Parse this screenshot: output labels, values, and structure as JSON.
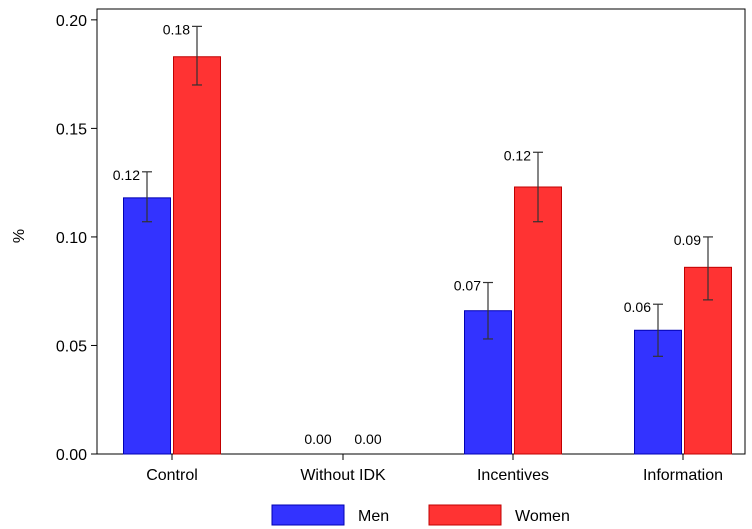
{
  "chart_data": {
    "type": "bar",
    "title": "",
    "xlabel": "",
    "ylabel": "%",
    "ylim": [
      0,
      0.205
    ],
    "yticks": [
      "0.00",
      "0.05",
      "0.10",
      "0.15",
      "0.20"
    ],
    "categories": [
      "Control",
      "Without IDK",
      "Incentives",
      "Information"
    ],
    "series": [
      {
        "name": "Men",
        "color": "#3333ff",
        "values": [
          0.118,
          0.0,
          0.066,
          0.057
        ],
        "labels": [
          "0.12",
          "0.00",
          "0.07",
          "0.06"
        ],
        "ci_low": [
          0.107,
          null,
          0.053,
          0.045
        ],
        "ci_high": [
          0.13,
          null,
          0.079,
          0.069
        ]
      },
      {
        "name": "Women",
        "color": "#ff3333",
        "values": [
          0.183,
          0.0,
          0.123,
          0.086
        ],
        "labels": [
          "0.18",
          "0.00",
          "0.12",
          "0.09"
        ],
        "ci_low": [
          0.17,
          null,
          0.107,
          0.071
        ],
        "ci_high": [
          0.197,
          null,
          0.139,
          0.1
        ]
      }
    ],
    "legend": {
      "position": "bottom"
    },
    "grid": false
  }
}
